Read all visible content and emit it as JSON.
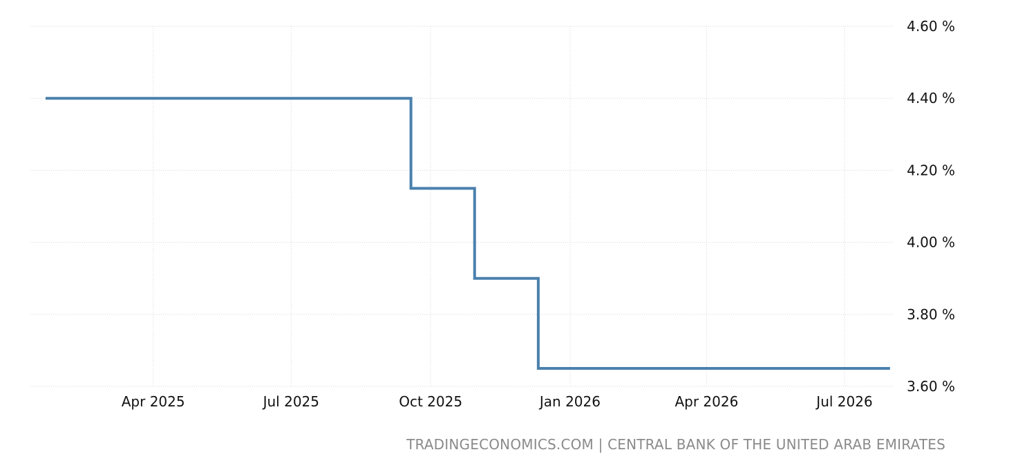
{
  "chart_data": {
    "type": "line",
    "step": true,
    "title": "",
    "xlabel": "",
    "ylabel": "",
    "x_ticks": [
      "Apr 2025",
      "Jul 2025",
      "Oct 2025",
      "Jan 2026",
      "Apr 2026",
      "Jul 2026"
    ],
    "y_ticks": [
      "4.60 %",
      "4.40 %",
      "4.20 %",
      "4.00 %",
      "3.80 %",
      "3.60 %"
    ],
    "y_tick_values": [
      4.6,
      4.4,
      4.2,
      4.0,
      3.8,
      3.6
    ],
    "ylim": [
      3.6,
      4.6
    ],
    "xlim": [
      "2025-01-10",
      "2026-08-01"
    ],
    "grid": true,
    "y_axis_side": "right",
    "series": [
      {
        "color": "#4a80ad",
        "points": [
          {
            "x": "2025-01-20",
            "y": 4.4
          },
          {
            "x": "2025-09-18",
            "y": 4.15
          },
          {
            "x": "2025-10-30",
            "y": 3.9
          },
          {
            "x": "2025-12-11",
            "y": 3.65
          },
          {
            "x": "2026-07-31",
            "y": 3.65
          }
        ]
      }
    ]
  },
  "source": "TRADINGECONOMICS.COM | CENTRAL BANK OF THE UNITED ARAB EMIRATES"
}
